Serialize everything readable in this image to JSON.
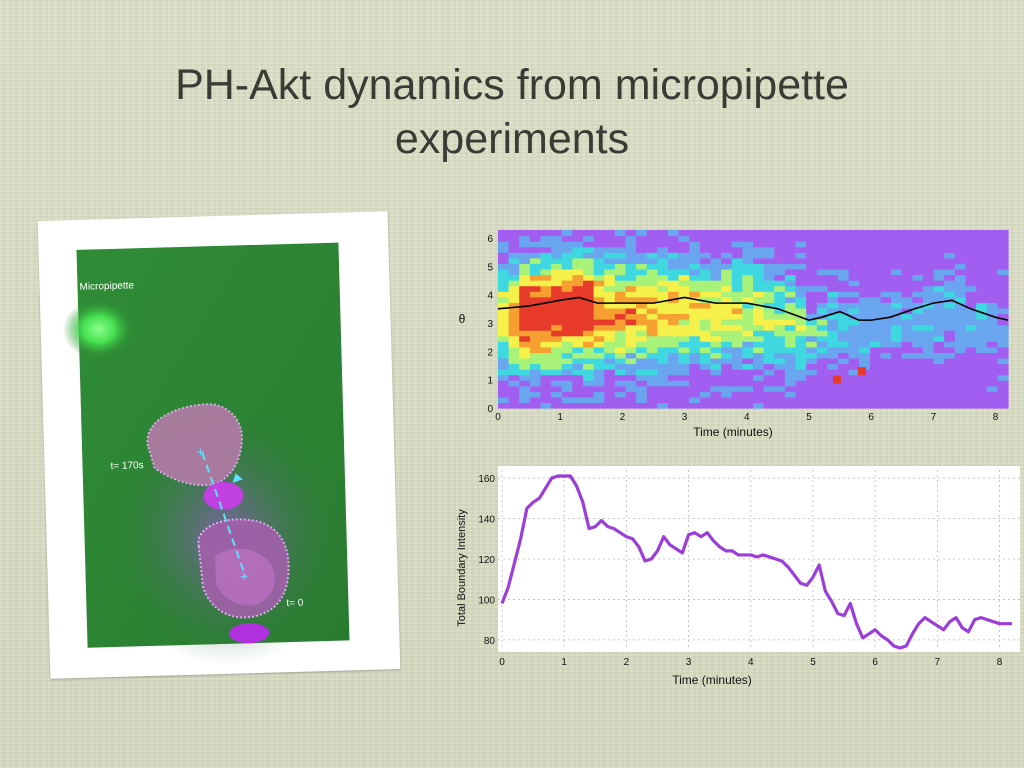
{
  "slide": {
    "title_line1": "PH-Akt dynamics from micropipette",
    "title_line2": "experiments"
  },
  "micrograph": {
    "micropipette_label": "Micropipette",
    "t170_label": "t= 170s",
    "t0_label": "t= 0"
  },
  "colors": {
    "background": "#d9dcc2",
    "title_text": "#3b3b36",
    "micrograph_green": "#2e8a33",
    "cell_magenta": "#c060d0",
    "intensity_line": "#9d3dd9",
    "peak_line": "#000000"
  },
  "chart_data": [
    {
      "type": "heatmap",
      "xlabel": "Time (minutes)",
      "ylabel": "θ",
      "xlim": [
        0,
        8.2
      ],
      "ylim": [
        0,
        6.28
      ],
      "xticks": [
        0,
        1,
        2,
        3,
        4,
        5,
        6,
        7,
        8
      ],
      "yticks": [
        0,
        1,
        2,
        3,
        4,
        5,
        6
      ],
      "colormap": [
        "#a15ef0",
        "#6aa5f0",
        "#3fd8e0",
        "#a8f27a",
        "#f6f04a",
        "#f5a030",
        "#e83a2a"
      ],
      "grid": false,
      "legend": "none",
      "peak_angle_series": {
        "x": [
          0,
          0.5,
          1.0,
          1.3,
          1.6,
          2.0,
          2.5,
          3.0,
          3.5,
          4.0,
          4.5,
          5.0,
          5.2,
          5.5,
          5.8,
          6.0,
          6.3,
          6.7,
          7.0,
          7.3,
          7.6,
          8.0,
          8.2
        ],
        "y": [
          3.5,
          3.6,
          3.8,
          3.9,
          3.7,
          3.7,
          3.7,
          3.9,
          3.7,
          3.7,
          3.5,
          3.1,
          3.2,
          3.4,
          3.1,
          3.1,
          3.2,
          3.5,
          3.7,
          3.8,
          3.5,
          3.2,
          3.1
        ]
      }
    },
    {
      "type": "line",
      "xlabel": "Time (minutes)",
      "ylabel": "Total Boundary Intensity",
      "xlim": [
        0,
        8.2
      ],
      "ylim": [
        75,
        162
      ],
      "xticks": [
        0,
        1,
        2,
        3,
        4,
        5,
        6,
        7,
        8
      ],
      "yticks": [
        80,
        100,
        120,
        140,
        160
      ],
      "grid": true,
      "legend": "none",
      "x": [
        0,
        0.1,
        0.2,
        0.3,
        0.4,
        0.5,
        0.6,
        0.7,
        0.8,
        0.9,
        1.0,
        1.1,
        1.2,
        1.3,
        1.4,
        1.5,
        1.6,
        1.7,
        1.8,
        1.9,
        2.0,
        2.1,
        2.2,
        2.3,
        2.4,
        2.5,
        2.6,
        2.7,
        2.8,
        2.9,
        3.0,
        3.1,
        3.2,
        3.3,
        3.4,
        3.5,
        3.6,
        3.7,
        3.8,
        3.9,
        4.0,
        4.1,
        4.2,
        4.3,
        4.4,
        4.5,
        4.6,
        4.7,
        4.8,
        4.9,
        5.0,
        5.1,
        5.2,
        5.3,
        5.4,
        5.5,
        5.6,
        5.7,
        5.8,
        5.9,
        6.0,
        6.1,
        6.2,
        6.3,
        6.4,
        6.5,
        6.6,
        6.7,
        6.8,
        6.9,
        7.0,
        7.1,
        7.2,
        7.3,
        7.4,
        7.5,
        7.6,
        7.7,
        7.8,
        7.9,
        8.0,
        8.1,
        8.2
      ],
      "y": [
        98,
        106,
        118,
        130,
        145,
        148,
        150,
        155,
        160,
        161,
        161,
        161,
        156,
        148,
        135,
        136,
        139,
        136,
        135,
        133,
        131,
        130,
        126,
        119,
        120,
        124,
        131,
        127,
        125,
        123,
        132,
        133,
        131,
        133,
        129,
        126,
        124,
        124,
        122,
        122,
        122,
        121,
        122,
        121,
        120,
        119,
        116,
        112,
        108,
        107,
        111,
        117,
        104,
        99,
        93,
        92,
        98,
        88,
        81,
        83,
        85,
        82,
        80,
        77,
        76,
        77,
        83,
        88,
        91,
        89,
        87,
        85,
        89,
        91,
        86,
        84,
        90,
        91,
        90,
        89,
        88,
        88,
        88
      ]
    }
  ]
}
